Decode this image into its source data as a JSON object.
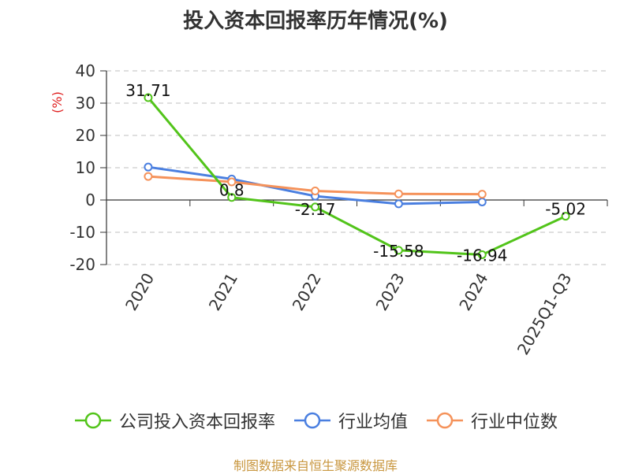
{
  "chart_data": {
    "type": "line",
    "title": "投入资本回报率历年情况(%)",
    "ylabel": "(%)",
    "categories": [
      "2020",
      "2021",
      "2022",
      "2023",
      "2024",
      "2025Q1-Q3"
    ],
    "ylim": [
      -20,
      40
    ],
    "yticks": [
      40,
      30,
      20,
      10,
      0,
      -10,
      -20
    ],
    "grid": true,
    "legend_position": "bottom",
    "series": [
      {
        "name": "公司投入资本回报率",
        "color": "#52c41a",
        "values": [
          31.71,
          0.8,
          -2.17,
          -15.58,
          -16.94,
          -5.02
        ],
        "labels": [
          "31.71",
          "0.8",
          "-2.17",
          "-15.58",
          "-16.94",
          "-5.02"
        ]
      },
      {
        "name": "行业均值",
        "color": "#4a7fe0",
        "values": [
          10.2,
          6.5,
          1.2,
          -1.2,
          -0.6,
          null
        ]
      },
      {
        "name": "行业中位数",
        "color": "#f5925a",
        "values": [
          7.3,
          5.6,
          2.8,
          1.9,
          1.8,
          null
        ]
      }
    ]
  },
  "source": "制图数据来自恒生聚源数据库"
}
